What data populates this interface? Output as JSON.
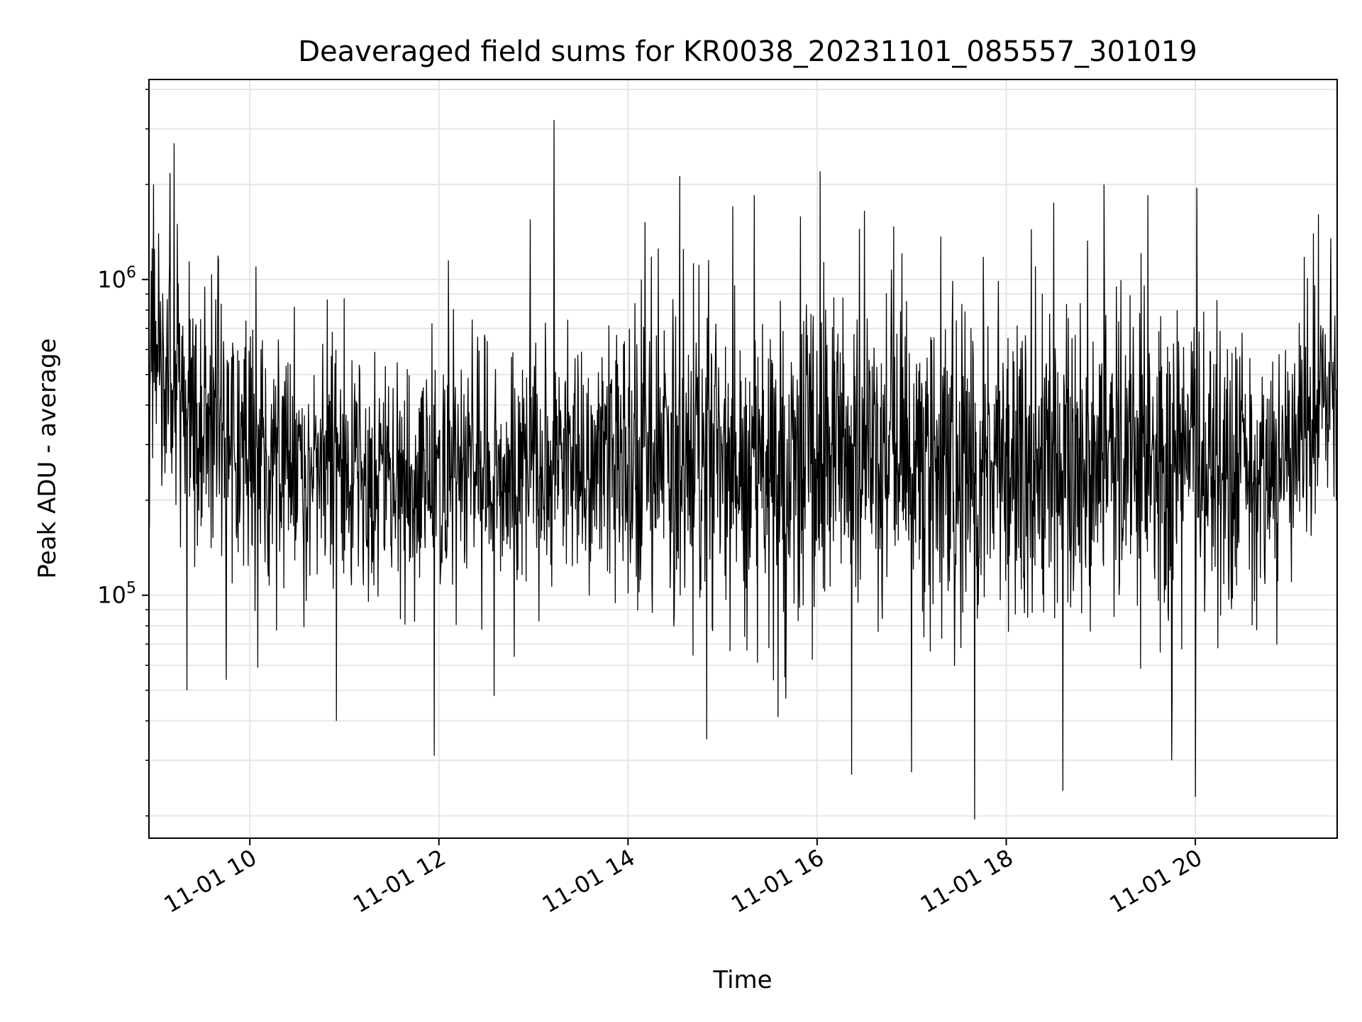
{
  "chart_data": {
    "type": "line",
    "title": "Deaveraged field sums for KR0038_20231101_085557_301019",
    "xlabel": "Time",
    "ylabel": "Peak ADU - average",
    "yscale": "log",
    "ylim": [
      17000,
      4300000
    ],
    "xlim": [
      "2023-11-01 08:56",
      "2023-11-01 21:30"
    ],
    "grid": true,
    "line_color": "#000000",
    "x_ticks": [
      {
        "label": "11-01 10",
        "time": "2023-11-01 10:00"
      },
      {
        "label": "11-01 12",
        "time": "2023-11-01 12:00"
      },
      {
        "label": "11-01 14",
        "time": "2023-11-01 14:00"
      },
      {
        "label": "11-01 16",
        "time": "2023-11-01 16:00"
      },
      {
        "label": "11-01 18",
        "time": "2023-11-01 18:00"
      },
      {
        "label": "11-01 20",
        "time": "2023-11-01 20:00"
      }
    ],
    "y_ticks": [
      {
        "base": "10",
        "exp": "5",
        "value": 100000
      },
      {
        "base": "10",
        "exp": "6",
        "value": 1000000
      }
    ],
    "series": [
      {
        "trend": [
          [
            "2023-11-01 08:56",
            550000
          ],
          [
            "2023-11-01 09:30",
            340000
          ],
          [
            "2023-11-01 10:00",
            280000
          ],
          [
            "2023-11-01 11:00",
            260000
          ],
          [
            "2023-11-01 12:00",
            240000
          ],
          [
            "2023-11-01 13:00",
            260000
          ],
          [
            "2023-11-01 14:00",
            280000
          ],
          [
            "2023-11-01 15:00",
            260000
          ],
          [
            "2023-11-01 16:00",
            270000
          ],
          [
            "2023-11-01 17:00",
            260000
          ],
          [
            "2023-11-01 18:00",
            270000
          ],
          [
            "2023-11-01 19:00",
            260000
          ],
          [
            "2023-11-01 20:00",
            230000
          ],
          [
            "2023-11-01 20:45",
            250000
          ],
          [
            "2023-11-01 21:30",
            450000
          ]
        ],
        "spikes": [
          [
            "2023-11-01 08:59",
            2000000
          ],
          [
            "2023-11-01 09:02",
            1400000
          ],
          [
            "2023-11-01 09:12",
            2700000
          ],
          [
            "2023-11-01 09:14",
            1500000
          ],
          [
            "2023-11-01 09:20",
            50000
          ],
          [
            "2023-11-01 09:40",
            1150000
          ],
          [
            "2023-11-01 09:45",
            54000
          ],
          [
            "2023-11-01 10:05",
            59000
          ],
          [
            "2023-11-01 10:55",
            40000
          ],
          [
            "2023-11-01 11:57",
            31000
          ],
          [
            "2023-11-01 12:06",
            1150000
          ],
          [
            "2023-11-01 12:35",
            48000
          ],
          [
            "2023-11-01 12:58",
            1550000
          ],
          [
            "2023-11-01 13:13",
            3200000
          ],
          [
            "2023-11-01 14:35",
            1250000
          ],
          [
            "2023-11-01 14:50",
            35000
          ],
          [
            "2023-11-01 15:20",
            1850000
          ],
          [
            "2023-11-01 16:02",
            2200000
          ],
          [
            "2023-11-01 16:22",
            27000
          ],
          [
            "2023-11-01 16:30",
            1650000
          ],
          [
            "2023-11-01 17:00",
            27500
          ],
          [
            "2023-11-01 17:40",
            19500
          ],
          [
            "2023-11-01 18:30",
            1750000
          ],
          [
            "2023-11-01 18:36",
            24000
          ],
          [
            "2023-11-01 19:02",
            2000000
          ],
          [
            "2023-11-01 19:30",
            1850000
          ],
          [
            "2023-11-01 19:45",
            30000
          ],
          [
            "2023-11-01 20:00",
            23000
          ],
          [
            "2023-11-01 20:01",
            1950000
          ],
          [
            "2023-11-01 21:15",
            1400000
          ],
          [
            "2023-11-01 21:26",
            1350000
          ]
        ]
      }
    ]
  }
}
